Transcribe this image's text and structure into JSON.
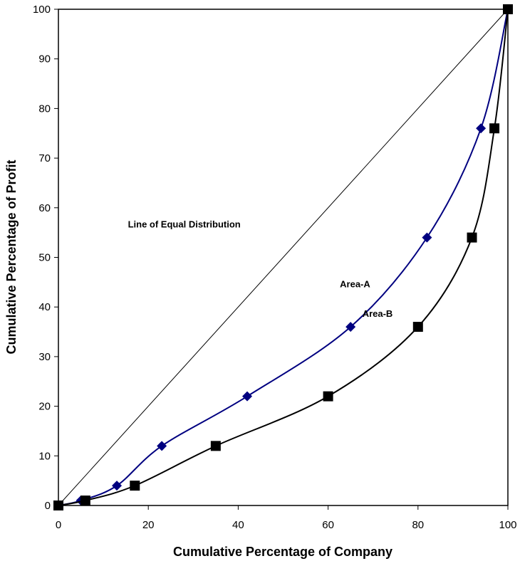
{
  "chart_data": {
    "type": "line",
    "title": "",
    "xlabel": "Cumulative Percentage of Company",
    "ylabel": "Cumulative Percentage of Profit",
    "xlim": [
      0,
      100
    ],
    "ylim": [
      0,
      100
    ],
    "x_ticks": [
      "0",
      "20",
      "40",
      "60",
      "80",
      "100"
    ],
    "y_ticks": [
      "0",
      "10",
      "20",
      "30",
      "40",
      "50",
      "60",
      "70",
      "80",
      "90",
      "100"
    ],
    "grid": false,
    "legend": "none",
    "series": [
      {
        "marker": "diamond",
        "color": "#000080",
        "points": [
          [
            0,
            0
          ],
          [
            5,
            1
          ],
          [
            13,
            4
          ],
          [
            23,
            12
          ],
          [
            42,
            22
          ],
          [
            65,
            36
          ],
          [
            82,
            54
          ],
          [
            94,
            76
          ],
          [
            100,
            100
          ]
        ]
      },
      {
        "marker": "square",
        "color": "#000000",
        "points": [
          [
            0,
            0
          ],
          [
            6,
            1
          ],
          [
            17,
            4
          ],
          [
            35,
            12
          ],
          [
            60,
            22
          ],
          [
            80,
            36
          ],
          [
            92,
            54
          ],
          [
            97,
            76
          ],
          [
            100,
            100
          ]
        ]
      },
      {
        "marker": "none",
        "color": "#000000",
        "points": [
          [
            0,
            0
          ],
          [
            100,
            100
          ]
        ]
      }
    ],
    "annotations": [
      {
        "text": "Line of Equal Distribution",
        "x": 28,
        "y": 56
      },
      {
        "text": "Area-A",
        "x": 66,
        "y": 44
      },
      {
        "text": "Area-B",
        "x": 71,
        "y": 38
      }
    ]
  }
}
